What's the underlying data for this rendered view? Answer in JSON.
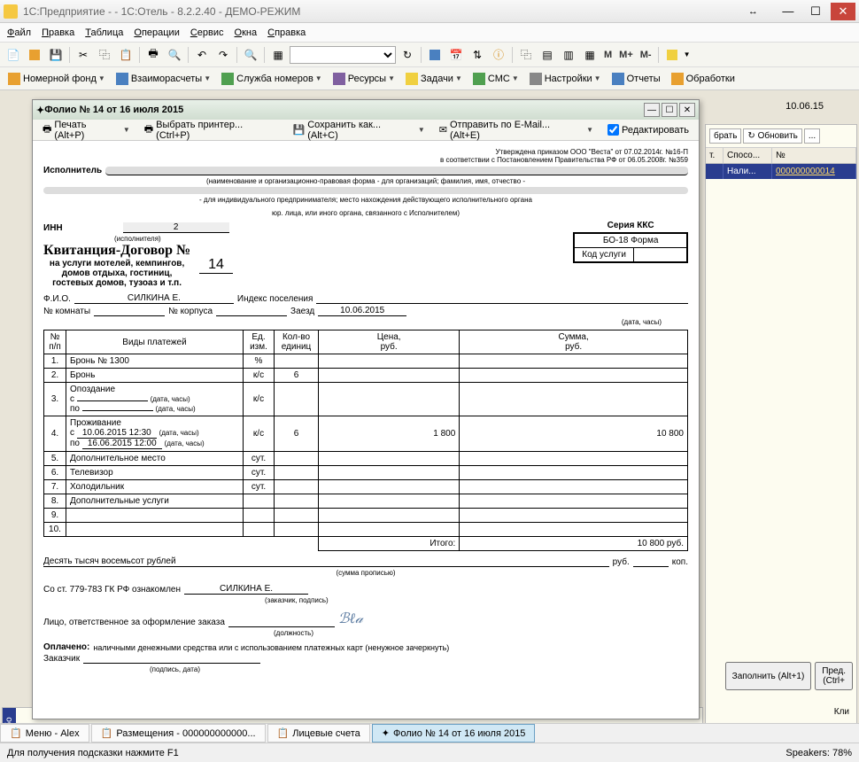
{
  "titlebar": {
    "title": "1С:Предприятие -                              - 1С:Отель - 8.2.2.40 - ДЕМО-РЕЖИМ"
  },
  "menu": {
    "file": "Файл",
    "edit": "Правка",
    "table": "Таблица",
    "ops": "Операции",
    "service": "Сервис",
    "windows": "Окна",
    "help": "Справка"
  },
  "toolbar2": {
    "rooms": "Номерной фонд",
    "settle": "Взаиморасчеты",
    "housekeeping": "Служба номеров",
    "resources": "Ресурсы",
    "tasks": "Задачи",
    "sms": "СМС",
    "settings": "Настройки",
    "reports": "Отчеты",
    "processing": "Обработки"
  },
  "rightGrid": {
    "date": "10.06.15",
    "selectBtn": "брать",
    "refreshBtn": "Обновить",
    "moreBtn": "...",
    "col1": "т.",
    "col2": "Спосо...",
    "col3": "№",
    "payMethod": "Нали...",
    "docNum": "000000000014",
    "fillBtn": "Заполнить  (Alt+1)",
    "predBtn": "Пред.\n(Ctrl+",
    "cliLabel": "Кли"
  },
  "folio": {
    "title": "Фолио № 14 от 16 июля 2015",
    "print": "Печать  (Alt+P)",
    "printer": "Выбрать принтер...  (Ctrl+P)",
    "saveas": "Сохранить как...  (Alt+C)",
    "email": "Отправить по E-Mail...  (Alt+E)",
    "editcb": "Редактировать"
  },
  "doc": {
    "approval1": "Утверждена приказом ООО \"Веста\" от 07.02.2014г. №16-П",
    "approval2": "в соответствии с Постановлением Правительства РФ от 06.05.2008г. №359",
    "executor": "Исполнитель",
    "execNote": "(наименование и организационно-правовая форма - для организаций; фамилия, имя, отчество -",
    "execNote2": "- для индивидуального предпринимателя;   место нахождения действующего исполнительного органа",
    "execNote3": "юр. лица, или иного органа, связанного с Исполнителем)",
    "inn": "ИНН",
    "innSub": "(исполнителя)",
    "innVal": "2",
    "seria": "Серия ККС",
    "form": "БО-18 Форма",
    "serviceCode": "Код услуги",
    "mainTitle": "Квитанция-Договор №",
    "mainNum": "14",
    "subtitle": "на услуги мотелей, кемпингов,\nдомов отдыха, гостиниц,\nгостевых домов, тузоаз и т.п.",
    "fio": "Ф.И.О.",
    "fioVal": "СИЛКИНА Е.",
    "indexLabel": "Индекс поселения",
    "roomNum": "№ комнаты",
    "buildingNum": "№ корпуса",
    "checkin": "Заезд",
    "checkinVal": "10.06.2015",
    "dateNote": "(дата, часы)",
    "headers": {
      "num": "№\nп/п",
      "type": "Виды платежей",
      "unit": "Ед.\nизм.",
      "qty": "Кол-во\nединиц",
      "price": "Цена,\nруб.",
      "sum": "Сумма,\nруб."
    },
    "rows": [
      {
        "n": "1.",
        "name": "Бронь № 1300",
        "unit": "%",
        "qty": "",
        "price": "",
        "sum": ""
      },
      {
        "n": "2.",
        "name": "Бронь",
        "unit": "к/с",
        "qty": "6",
        "price": "",
        "sum": ""
      },
      {
        "n": "3.",
        "name": "Опоздание",
        "unit": "к/с",
        "qty": "",
        "price": "",
        "sum": ""
      },
      {
        "n": "4.",
        "name": "Проживание",
        "unit": "к/с",
        "qty": "6",
        "price": "1 800",
        "sum": "10 800"
      },
      {
        "n": "5.",
        "name": "Дополнительное место",
        "unit": "сут.",
        "qty": "",
        "price": "",
        "sum": ""
      },
      {
        "n": "6.",
        "name": "Телевизор",
        "unit": "сут.",
        "qty": "",
        "price": "",
        "sum": ""
      },
      {
        "n": "7.",
        "name": "Холодильник",
        "unit": "сут.",
        "qty": "",
        "price": "",
        "sum": ""
      },
      {
        "n": "8.",
        "name": "Дополнительные услуги",
        "unit": "",
        "qty": "",
        "price": "",
        "sum": ""
      },
      {
        "n": "9.",
        "name": "",
        "unit": "",
        "qty": "",
        "price": "",
        "sum": ""
      },
      {
        "n": "10.",
        "name": "",
        "unit": "",
        "qty": "",
        "price": "",
        "sum": ""
      }
    ],
    "row3": {
      "from": "с",
      "to": "по",
      "dn": "(дата, часы)"
    },
    "row4": {
      "from": "с",
      "fromDate": "10.06.2015 12:30",
      "to": "по",
      "toDate": "16.06.2015 12:00",
      "dn": "(дата, часы)"
    },
    "total": "Итого:",
    "totalVal": "10 800 руб.",
    "words": "Десять тысяч восемьсот рублей",
    "wordsNote": "(сумма прописью)",
    "rub": "руб.",
    "kop": "коп.",
    "acquaint": "Со ст. 779-783 ГК РФ ознакомлен",
    "acquaintVal": "СИЛКИНА Е.",
    "custNote": "(заказчик, подпись)",
    "responsible": "Лицо, ответственное за оформление заказа",
    "respNote": "(должность)",
    "paid": "Оплачено:",
    "paidNote": "наличными денежными средства или  с использованием платежных карт   (ненужное зачеркнуть)",
    "customer": "Заказчик",
    "custSigNote": "(подпись, дата)"
  },
  "taskbar": {
    "t1": "Меню - Alex",
    "t2": "Размещения - 000000000000...",
    "t3": "Лицевые счета",
    "t4": "Фолио № 14 от 16 июля 2015"
  },
  "status": {
    "hint": "Для получения подсказки нажмите F1",
    "speakers": "Speakers: 78%"
  },
  "otbo": "Отбо"
}
